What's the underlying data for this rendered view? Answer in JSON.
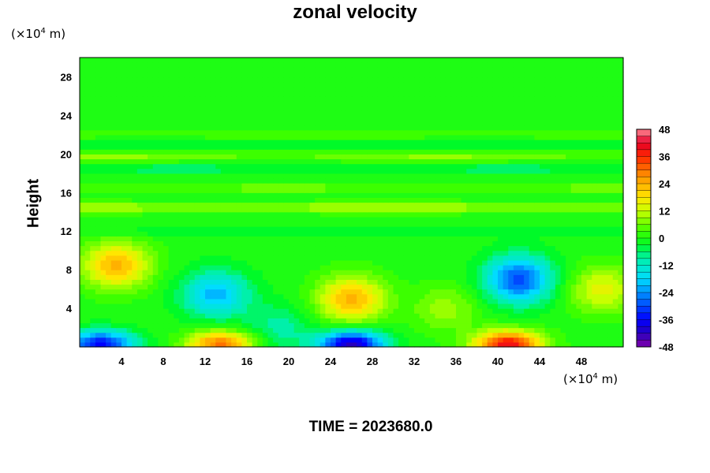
{
  "chart_data": {
    "type": "heatmap",
    "title": "zonal velocity",
    "xlabel": "",
    "ylabel": "Height",
    "x_unit_prefix": "(×10",
    "x_unit_exp": "4",
    "x_unit_suffix": " m)",
    "y_unit_prefix": "(×10",
    "y_unit_exp": "4",
    "y_unit_suffix": " m)",
    "xlim": [
      0,
      52
    ],
    "ylim": [
      0,
      30
    ],
    "x_ticks": [
      4,
      8,
      12,
      16,
      20,
      24,
      28,
      32,
      36,
      40,
      44,
      48
    ],
    "y_ticks": [
      4,
      8,
      12,
      16,
      20,
      24,
      28
    ],
    "colorbar": {
      "min": -48,
      "max": 48,
      "step": 3,
      "tick_labels": [
        48,
        36,
        24,
        12,
        0,
        -12,
        -24,
        -36,
        -48
      ]
    },
    "features": [
      {
        "x": 3.5,
        "y": 8.5,
        "value": 24
      },
      {
        "x": 13,
        "y": 5.5,
        "value": -21
      },
      {
        "x": 13.5,
        "y": 0.3,
        "value": 30
      },
      {
        "x": 2,
        "y": 0.3,
        "value": -36
      },
      {
        "x": 26,
        "y": 5,
        "value": 24
      },
      {
        "x": 26,
        "y": 0.3,
        "value": -42
      },
      {
        "x": 42,
        "y": 7,
        "value": -30
      },
      {
        "x": 41,
        "y": 0.3,
        "value": 40
      },
      {
        "x": 50,
        "y": 6,
        "value": 15
      },
      {
        "x": 19,
        "y": 2,
        "value": -9
      },
      {
        "x": 35,
        "y": 4,
        "value": 9
      }
    ],
    "bands": [
      {
        "y": 14.5,
        "value": 12
      },
      {
        "y": 16.5,
        "value": 6
      },
      {
        "y": 18.5,
        "value": -6
      },
      {
        "y": 19.8,
        "value": 8
      },
      {
        "y": 21,
        "value": -5
      },
      {
        "y": 22,
        "value": 4
      },
      {
        "y": 12,
        "value": -4
      }
    ]
  },
  "footer": {
    "time_label": "TIME = 2023680.0"
  },
  "colors": {
    "background": "#ffffff",
    "axis": "#000000"
  }
}
